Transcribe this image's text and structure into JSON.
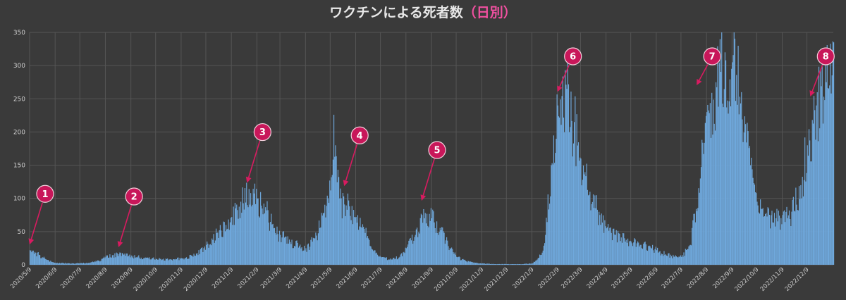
{
  "chart_data": {
    "type": "bar",
    "title": "ワクチンによる死者数",
    "title_suffix": "（日別）",
    "xlabel": "",
    "ylabel": "",
    "ylim": [
      0,
      350
    ],
    "yticks": [
      0,
      50,
      100,
      150,
      200,
      250,
      300,
      350
    ],
    "grid": true,
    "bar_color": "#6fa8dc",
    "background": "#3a3a3a",
    "x_start": "2020/5/9",
    "x_end": "2023/1/10",
    "xticks": [
      "2020/5/9",
      "2020/6/9",
      "2020/7/9",
      "2020/8/9",
      "2020/9/9",
      "2020/10/9",
      "2020/11/9",
      "2020/12/9",
      "2021/1/9",
      "2021/2/9",
      "2021/3/9",
      "2021/4/9",
      "2021/5/9",
      "2021/6/9",
      "2021/7/9",
      "2021/8/9",
      "2021/9/9",
      "2021/10/9",
      "2021/11/9",
      "2021/12/9",
      "2022/1/9",
      "2022/2/9",
      "2022/3/9",
      "2022/4/9",
      "2022/5/9",
      "2022/6/9",
      "2022/7/9",
      "2022/8/9",
      "2022/9/9",
      "2022/10/9",
      "2022/11/9",
      "2022/12/9"
    ],
    "series": [
      {
        "name": "",
        "x": [
          "2020/5/9",
          "2020/5/20",
          "2020/6/1",
          "2020/6/9",
          "2020/7/1",
          "2020/7/20",
          "2020/8/1",
          "2020/8/9",
          "2020/8/25",
          "2020/9/9",
          "2020/9/25",
          "2020/10/9",
          "2020/10/25",
          "2020/11/9",
          "2020/11/25",
          "2020/12/9",
          "2020/12/25",
          "2021/1/9",
          "2021/1/20",
          "2021/2/1",
          "2021/2/9",
          "2021/2/20",
          "2021/3/1",
          "2021/3/9",
          "2021/3/20",
          "2021/4/1",
          "2021/4/9",
          "2021/4/20",
          "2021/5/1",
          "2021/5/9",
          "2021/5/13",
          "2021/5/20",
          "2021/6/1",
          "2021/6/9",
          "2021/6/20",
          "2021/7/1",
          "2021/7/9",
          "2021/7/20",
          "2021/8/1",
          "2021/8/9",
          "2021/8/20",
          "2021/9/1",
          "2021/9/9",
          "2021/9/20",
          "2021/10/1",
          "2021/10/9",
          "2021/10/20",
          "2021/11/1",
          "2021/11/9",
          "2021/11/25",
          "2021/12/9",
          "2021/12/25",
          "2022/1/9",
          "2022/1/20",
          "2022/1/25",
          "2022/2/1",
          "2022/2/9",
          "2022/2/20",
          "2022/3/1",
          "2022/3/9",
          "2022/3/20",
          "2022/4/1",
          "2022/4/9",
          "2022/4/20",
          "2022/5/1",
          "2022/5/9",
          "2022/5/20",
          "2022/6/1",
          "2022/6/9",
          "2022/6/20",
          "2022/7/1",
          "2022/7/9",
          "2022/7/20",
          "2022/8/1",
          "2022/8/9",
          "2022/8/20",
          "2022/8/31",
          "2022/9/9",
          "2022/9/20",
          "2022/10/1",
          "2022/10/9",
          "2022/10/20",
          "2022/11/1",
          "2022/11/9",
          "2022/11/20",
          "2022/12/1",
          "2022/12/9",
          "2022/12/20",
          "2023/1/1",
          "2023/1/10"
        ],
        "values": [
          22,
          15,
          6,
          3,
          2,
          3,
          6,
          12,
          16,
          14,
          10,
          9,
          8,
          10,
          14,
          30,
          52,
          72,
          95,
          108,
          100,
          82,
          55,
          45,
          38,
          28,
          25,
          40,
          78,
          112,
          226,
          100,
          88,
          72,
          48,
          22,
          12,
          8,
          12,
          25,
          45,
          78,
          70,
          52,
          25,
          12,
          6,
          3,
          2,
          1,
          1,
          1,
          2,
          15,
          45,
          150,
          240,
          265,
          215,
          160,
          110,
          75,
          55,
          45,
          40,
          35,
          30,
          28,
          22,
          16,
          12,
          12,
          30,
          130,
          230,
          275,
          320,
          305,
          260,
          150,
          95,
          78,
          70,
          75,
          80,
          120,
          180,
          240,
          275,
          335
        ]
      }
    ],
    "annotations": [
      {
        "label": "1",
        "date": "2020/5/9",
        "value": 22
      },
      {
        "label": "2",
        "date": "2020/8/25",
        "value": 18
      },
      {
        "label": "3",
        "date": "2021/1/28",
        "value": 115
      },
      {
        "label": "4",
        "date": "2021/5/26",
        "value": 110
      },
      {
        "label": "5",
        "date": "2021/8/28",
        "value": 88
      },
      {
        "label": "6",
        "date": "2022/2/9",
        "value": 252
      },
      {
        "label": "7",
        "date": "2022/7/28",
        "value": 262
      },
      {
        "label": "8",
        "date": "2022/12/13",
        "value": 245
      }
    ]
  }
}
